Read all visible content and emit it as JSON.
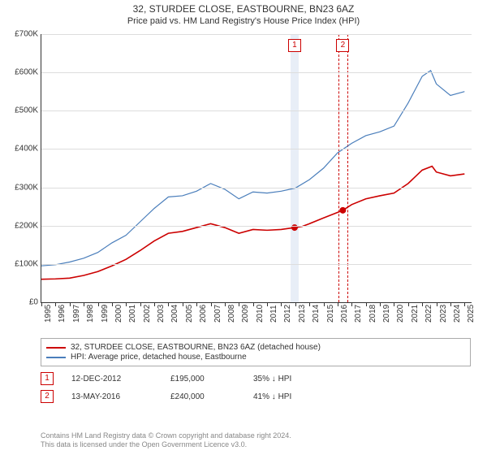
{
  "title": "32, STURDEE CLOSE, EASTBOURNE, BN23 6AZ",
  "subtitle": "Price paid vs. HM Land Registry's House Price Index (HPI)",
  "chart": {
    "type": "line",
    "background_color": "#ffffff",
    "grid_color": "#dddddd",
    "axis_color": "#333333",
    "y": {
      "min": 0,
      "max": 700000,
      "step": 100000,
      "labels": [
        "£0",
        "£100K",
        "£200K",
        "£300K",
        "£400K",
        "£500K",
        "£600K",
        "£700K"
      ]
    },
    "x": {
      "min": 1995,
      "max": 2025.5,
      "labels": [
        "1995",
        "1996",
        "1997",
        "1998",
        "1999",
        "2000",
        "2001",
        "2002",
        "2003",
        "2004",
        "2005",
        "2006",
        "2007",
        "2008",
        "2009",
        "2010",
        "2011",
        "2012",
        "2013",
        "2014",
        "2015",
        "2016",
        "2017",
        "2018",
        "2019",
        "2020",
        "2021",
        "2022",
        "2023",
        "2024",
        "2025"
      ]
    },
    "series": [
      {
        "name": "32, STURDEE CLOSE, EASTBOURNE, BN23 6AZ (detached house)",
        "color": "#cc0000",
        "width": 1.6,
        "data": [
          [
            1995,
            60000
          ],
          [
            1996,
            61000
          ],
          [
            1997,
            63000
          ],
          [
            1998,
            70000
          ],
          [
            1999,
            80000
          ],
          [
            2000,
            95000
          ],
          [
            2001,
            112000
          ],
          [
            2002,
            135000
          ],
          [
            2003,
            160000
          ],
          [
            2004,
            180000
          ],
          [
            2005,
            185000
          ],
          [
            2006,
            195000
          ],
          [
            2007,
            205000
          ],
          [
            2008,
            195000
          ],
          [
            2009,
            180000
          ],
          [
            2010,
            190000
          ],
          [
            2011,
            188000
          ],
          [
            2012,
            190000
          ],
          [
            2012.95,
            195000
          ],
          [
            2013.5,
            198000
          ],
          [
            2014,
            205000
          ],
          [
            2015,
            220000
          ],
          [
            2016.37,
            240000
          ],
          [
            2017,
            255000
          ],
          [
            2018,
            270000
          ],
          [
            2019,
            278000
          ],
          [
            2020,
            285000
          ],
          [
            2021,
            310000
          ],
          [
            2022,
            345000
          ],
          [
            2022.7,
            355000
          ],
          [
            2023,
            340000
          ],
          [
            2024,
            330000
          ],
          [
            2025,
            335000
          ]
        ]
      },
      {
        "name": "HPI: Average price, detached house, Eastbourne",
        "color": "#4a7ebb",
        "width": 1.2,
        "data": [
          [
            1995,
            95000
          ],
          [
            1996,
            98000
          ],
          [
            1997,
            105000
          ],
          [
            1998,
            115000
          ],
          [
            1999,
            130000
          ],
          [
            2000,
            155000
          ],
          [
            2001,
            175000
          ],
          [
            2002,
            210000
          ],
          [
            2003,
            245000
          ],
          [
            2004,
            275000
          ],
          [
            2005,
            278000
          ],
          [
            2006,
            290000
          ],
          [
            2007,
            310000
          ],
          [
            2008,
            295000
          ],
          [
            2009,
            270000
          ],
          [
            2010,
            288000
          ],
          [
            2011,
            285000
          ],
          [
            2012,
            290000
          ],
          [
            2013,
            298000
          ],
          [
            2014,
            320000
          ],
          [
            2015,
            350000
          ],
          [
            2016,
            390000
          ],
          [
            2017,
            415000
          ],
          [
            2018,
            435000
          ],
          [
            2019,
            445000
          ],
          [
            2020,
            460000
          ],
          [
            2021,
            520000
          ],
          [
            2022,
            590000
          ],
          [
            2022.6,
            605000
          ],
          [
            2023,
            570000
          ],
          [
            2024,
            540000
          ],
          [
            2025,
            550000
          ]
        ]
      }
    ],
    "sale_points": [
      {
        "num": "1",
        "x": 2012.95,
        "y": 195000,
        "band_color": "#e8eef7"
      },
      {
        "num": "2",
        "x": 2016.37,
        "y": 240000,
        "band_color": "#fdecec",
        "band_dashed": true
      }
    ]
  },
  "legend": {
    "items": [
      {
        "color": "#cc0000",
        "label": "32, STURDEE CLOSE, EASTBOURNE, BN23 6AZ (detached house)"
      },
      {
        "color": "#4a7ebb",
        "label": "HPI: Average price, detached house, Eastbourne"
      }
    ]
  },
  "sales": [
    {
      "num": "1",
      "date": "12-DEC-2012",
      "price": "£195,000",
      "diff": "35% ↓ HPI"
    },
    {
      "num": "2",
      "date": "13-MAY-2016",
      "price": "£240,000",
      "diff": "41% ↓ HPI"
    }
  ],
  "footer_line1": "Contains HM Land Registry data © Crown copyright and database right 2024.",
  "footer_line2": "This data is licensed under the Open Government Licence v3.0."
}
